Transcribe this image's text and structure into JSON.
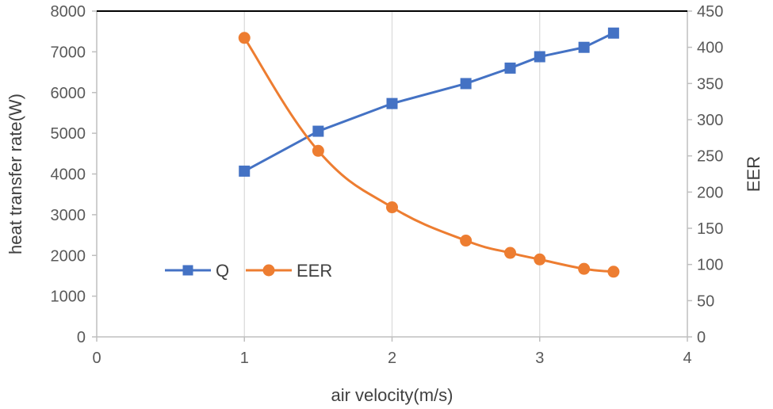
{
  "chart_data": {
    "type": "line",
    "title": "",
    "xlabel": "air velocity(m/s)",
    "ylabel": "heat transfer rate(W)",
    "y2label": "EER",
    "xlim": [
      0,
      4
    ],
    "ylim": [
      0,
      8000
    ],
    "y2lim": [
      0,
      450
    ],
    "x_ticks": [
      0,
      1,
      2,
      3,
      4
    ],
    "y_ticks": [
      0,
      1000,
      2000,
      3000,
      4000,
      5000,
      6000,
      7000,
      8000
    ],
    "y2_ticks": [
      0,
      50,
      100,
      150,
      200,
      250,
      300,
      350,
      400,
      450
    ],
    "grid": "vertical",
    "legend": "bottom-left",
    "series": [
      {
        "name": "Q",
        "axis": "left",
        "marker": "square",
        "color": "#4472C4",
        "smooth": false,
        "x": [
          1,
          1.5,
          2,
          2.5,
          2.8,
          3,
          3.3,
          3.5
        ],
        "values": [
          4070,
          5050,
          5730,
          6220,
          6600,
          6880,
          7110,
          7460
        ]
      },
      {
        "name": "EER",
        "axis": "right",
        "marker": "circle",
        "color": "#ED7D31",
        "smooth": true,
        "x": [
          1,
          1.5,
          2,
          2.5,
          2.8,
          3,
          3.3,
          3.5
        ],
        "values": [
          413,
          257,
          179,
          133,
          116,
          107,
          94,
          90
        ]
      }
    ],
    "colors": {
      "grid": "#d9d9d9",
      "axis": "#bfbfbf",
      "top_border": "#000000"
    }
  }
}
